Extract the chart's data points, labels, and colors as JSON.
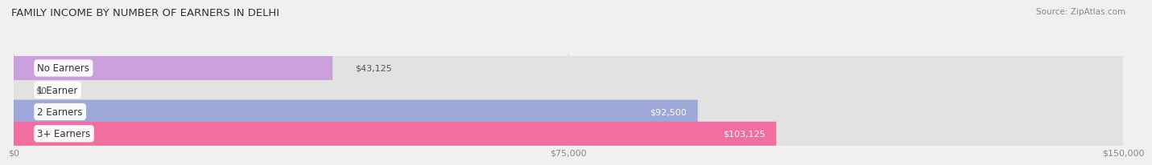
{
  "title": "FAMILY INCOME BY NUMBER OF EARNERS IN DELHI",
  "source": "Source: ZipAtlas.com",
  "categories": [
    "No Earners",
    "1 Earner",
    "2 Earners",
    "3+ Earners"
  ],
  "values": [
    43125,
    0,
    92500,
    103125
  ],
  "bar_colors": [
    "#c9a0dc",
    "#7ececa",
    "#9da8d8",
    "#f06ea0"
  ],
  "value_labels": [
    "$43,125",
    "$0",
    "$92,500",
    "$103,125"
  ],
  "value_inside": [
    false,
    false,
    true,
    true
  ],
  "xlim": [
    0,
    150000
  ],
  "xticks": [
    0,
    75000,
    150000
  ],
  "xticklabels": [
    "$0",
    "$75,000",
    "$150,000"
  ],
  "background_color": "#f0f0f0",
  "bar_background": "#e2e2e2",
  "title_fontsize": 9.5,
  "source_fontsize": 7.5,
  "tick_fontsize": 8,
  "label_fontsize": 8.5,
  "value_fontsize": 8
}
